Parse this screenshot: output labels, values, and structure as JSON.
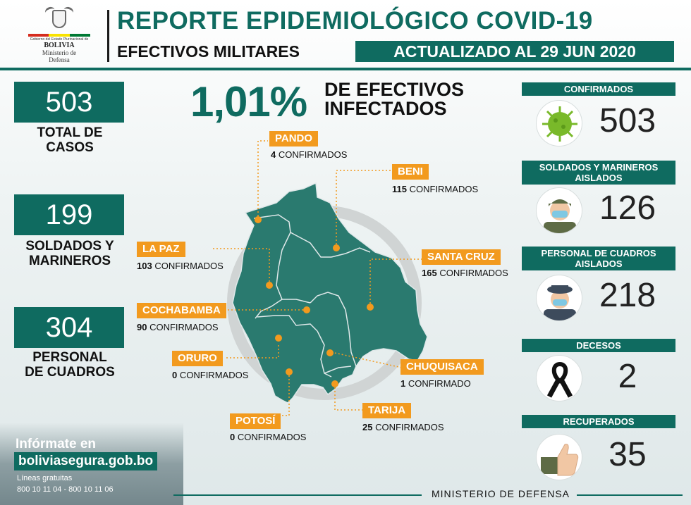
{
  "header": {
    "logo": {
      "line1": "Gobierno del Estado Plurinacional de",
      "country": "BOLIVIA",
      "ministry_line1": "Ministerio de",
      "ministry_line2": "Defensa",
      "flag_colors": [
        "#d52b1e",
        "#f9e300",
        "#007934"
      ]
    },
    "title": "REPORTE EPIDEMIOLÓGICO COVID-19",
    "subtitle": "EFECTIVOS MILITARES",
    "updated": "ACTUALIZADO AL 29 JUN 2020"
  },
  "left_stats": [
    {
      "value": "503",
      "label_line1": "TOTAL DE",
      "label_line2": "CASOS"
    },
    {
      "value": "199",
      "label_line1": "SOLDADOS Y",
      "label_line2": "MARINEROS"
    },
    {
      "value": "304",
      "label_line1": "PERSONAL",
      "label_line2": "DE CUADROS"
    }
  ],
  "headline": {
    "percent": "1,01%",
    "line1": "DE EFECTIVOS",
    "line2": "INFECTADOS"
  },
  "departments": [
    {
      "name": "PANDO",
      "count": "4",
      "suffix": "CONFIRMADOS"
    },
    {
      "name": "BENI",
      "count": "115",
      "suffix": "CONFIRMADOS"
    },
    {
      "name": "LA PAZ",
      "count": "103",
      "suffix": "CONFIRMADOS"
    },
    {
      "name": "SANTA CRUZ",
      "count": "165",
      "suffix": "CONFIRMADOS"
    },
    {
      "name": "COCHABAMBA",
      "count": "90",
      "suffix": "CONFIRMADOS"
    },
    {
      "name": "ORURO",
      "count": "0",
      "suffix": "CONFIRMADOS"
    },
    {
      "name": "CHUQUISACA",
      "count": "1",
      "suffix": "CONFIRMADO"
    },
    {
      "name": "TARIJA",
      "count": "25",
      "suffix": "CONFIRMADOS"
    },
    {
      "name": "POTOSÍ",
      "count": "0",
      "suffix": "CONFIRMADOS"
    }
  ],
  "right_stats": [
    {
      "label": "CONFIRMADOS",
      "value": "503",
      "icon": "virus-icon"
    },
    {
      "label": "SOLDADOS Y MARINEROS AISLADOS",
      "value": "126",
      "icon": "soldier-mask-icon"
    },
    {
      "label": "PERSONAL DE CUADROS AISLADOS",
      "value": "218",
      "icon": "officer-mask-icon"
    },
    {
      "label": "DECESOS",
      "value": "2",
      "icon": "mourning-ribbon-icon"
    },
    {
      "label": "RECUPERADOS",
      "value": "35",
      "icon": "thumbs-up-icon"
    }
  ],
  "footer": {
    "info_title": "Infórmate en",
    "website": "boliviasegura.gob.bo",
    "lines_label": "Líneas gratuitas",
    "phones": "800 10 11 04 - 800 10 11 06",
    "ministry": "MINISTERIO DE DEFENSA"
  },
  "colors": {
    "primary": "#0f6b60",
    "accent": "#f29a1e",
    "map": "#2a7a6f"
  }
}
